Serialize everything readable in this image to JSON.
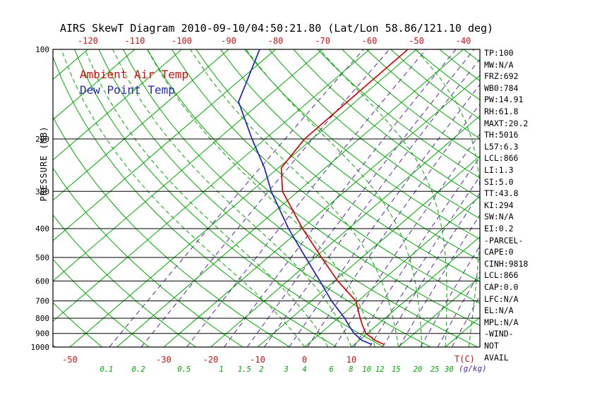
{
  "title": "AIRS SkewT Diagram 2010-09-10/04:50:21.80 (Lat/Lon 58.86/121.10 deg)",
  "legend": {
    "ambient": "Ambient Air Temp",
    "dew": "Dew Point Temp"
  },
  "axes": {
    "pressure_label": "PRESSURE (MB)",
    "temp_unit": "T(C)",
    "mixing_unit": "(g/kg)",
    "pressure_ticks": [
      100,
      200,
      300,
      400,
      500,
      600,
      700,
      800,
      900,
      1000
    ],
    "top_temp_ticks": [
      -120,
      -110,
      -100,
      -90,
      -80,
      -70,
      -60,
      -50,
      -40
    ],
    "bottom_temp_ticks": [
      -50,
      -30,
      -20,
      -10,
      0,
      10
    ]
  },
  "stats": {
    "lines": [
      "TP:100",
      "MW:N/A",
      "FRZ:692",
      "WB0:784",
      "PW:14.91",
      "RH:61.8",
      "MAXT:20.2",
      "TH:5016",
      "L57:6.3",
      "LCL:866",
      "LI:1.3",
      "SI:5.0",
      "TT:43.8",
      "KI:294",
      "SW:N/A",
      "EI:0.2",
      "-PARCEL-",
      "CAPE:0",
      "CINH:9818",
      "LCL:866",
      "CAP:0.0",
      "LFC:N/A",
      "EL:N/A",
      "MPL:N/A",
      "-WIND-",
      "NOT",
      "AVAIL"
    ]
  },
  "colors": {
    "isoline_green": "#00a800",
    "mixing_purple": "#5522aa",
    "temp_red": "#cc1111",
    "dew_blue": "#2929b8",
    "axis_black": "#000000"
  },
  "chart_data": {
    "type": "line",
    "title": "AIRS SkewT Diagram 2010-09-10/04:50:21.80 (Lat/Lon 58.86/121.10 deg)",
    "xlabel": "T(C)",
    "ylabel": "PRESSURE (MB)",
    "y_scale": "log",
    "y_range_mb": [
      100,
      1000
    ],
    "x_range_c_at_1000mb": [
      -53.6,
      37.4
    ],
    "skew": "isotherms slant up-right 45deg",
    "grid": "skew-t log-p background (isotherms, dry/moist adiabats, mixing ratio lines)",
    "legend_position": "top-left inside plot",
    "series": [
      {
        "name": "Ambient Air Temp",
        "color": "#cc1111",
        "points_mb_c": [
          [
            980,
            16.3
          ],
          [
            950,
            13.4
          ],
          [
            900,
            9.7
          ],
          [
            850,
            7.2
          ],
          [
            800,
            4.7
          ],
          [
            700,
            -0.5
          ],
          [
            600,
            -9.3
          ],
          [
            500,
            -18.6
          ],
          [
            400,
            -29.8
          ],
          [
            300,
            -43.3
          ],
          [
            250,
            -49.4
          ],
          [
            200,
            -51.6
          ],
          [
            150,
            -51.7
          ],
          [
            100,
            -51.8
          ]
        ]
      },
      {
        "name": "Dew Point Temp",
        "color": "#2929b8",
        "points_mb_c": [
          [
            980,
            13.7
          ],
          [
            950,
            10.6
          ],
          [
            900,
            7.2
          ],
          [
            850,
            4.3
          ],
          [
            800,
            1.4
          ],
          [
            700,
            -5.7
          ],
          [
            600,
            -13.1
          ],
          [
            500,
            -22.0
          ],
          [
            400,
            -32.8
          ],
          [
            300,
            -45.7
          ],
          [
            250,
            -53.0
          ],
          [
            200,
            -62.8
          ],
          [
            150,
            -74.9
          ],
          [
            100,
            -83.4
          ]
        ]
      }
    ],
    "isotherms_c": {
      "start": -130,
      "end": 30,
      "step": 10
    },
    "dry_adiabats_k": {
      "start": 220,
      "end": 460,
      "step": 10
    },
    "moist_adiabats_c_at_1000mb": {
      "start": 0,
      "end": 60,
      "step": 5
    },
    "mixing_ratio_g_kg": [
      0.1,
      0.2,
      0.5,
      1,
      1.5,
      2,
      3,
      4,
      6,
      8,
      10,
      12,
      15,
      20,
      25,
      30
    ]
  }
}
